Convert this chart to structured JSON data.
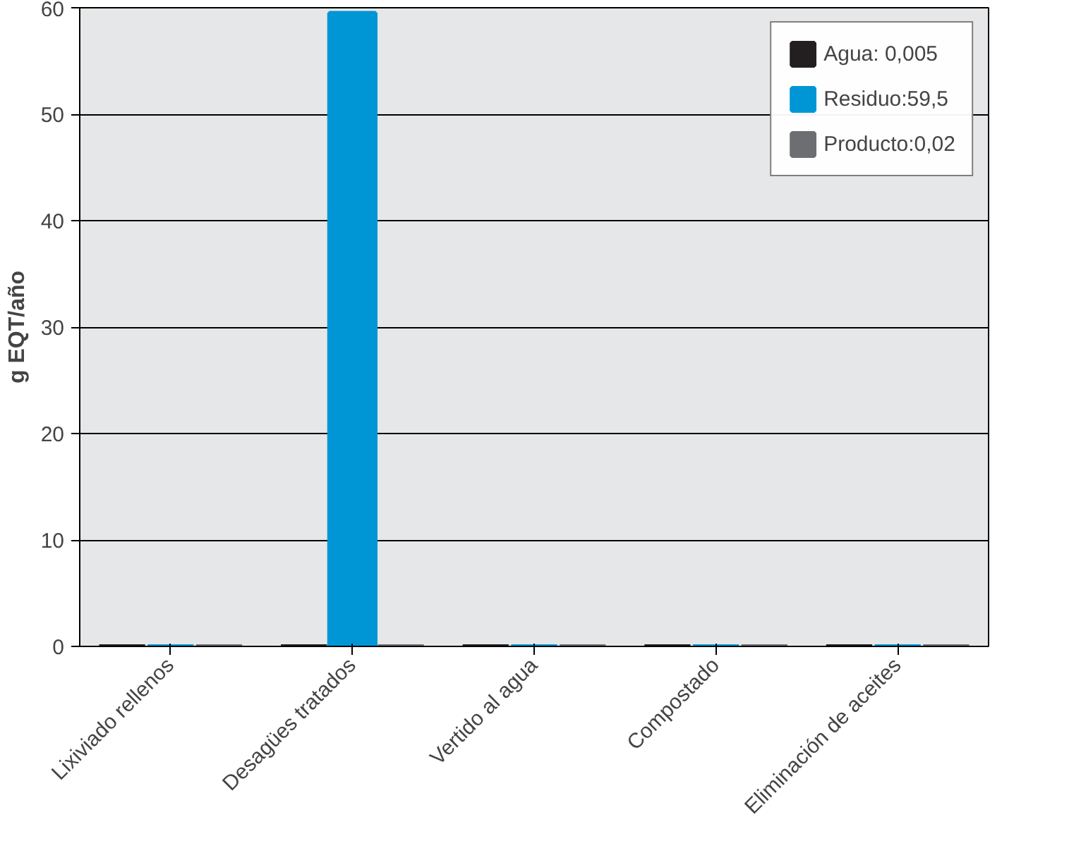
{
  "chart_data": {
    "type": "bar",
    "categories": [
      "Lixiviado rellenos",
      "Desagües tratados",
      "Vertido al agua",
      "Compostado",
      "Eliminación de aceites"
    ],
    "series": [
      {
        "name": "Agua: 0,005",
        "color": "#231f20",
        "values": [
          0,
          0,
          0,
          0,
          0
        ]
      },
      {
        "name": "Residuo:59,5",
        "color": "#0096d6",
        "values": [
          0,
          59.5,
          0,
          0,
          0
        ]
      },
      {
        "name": "Producto:0,02",
        "color": "#6d6e71",
        "values": [
          0,
          0,
          0,
          0,
          0
        ]
      }
    ],
    "ylabel": "g EQT/año",
    "ylim": [
      0,
      60
    ],
    "yticks": [
      0,
      10,
      20,
      30,
      40,
      50,
      60
    ],
    "grid": "y",
    "legend": "top right"
  }
}
